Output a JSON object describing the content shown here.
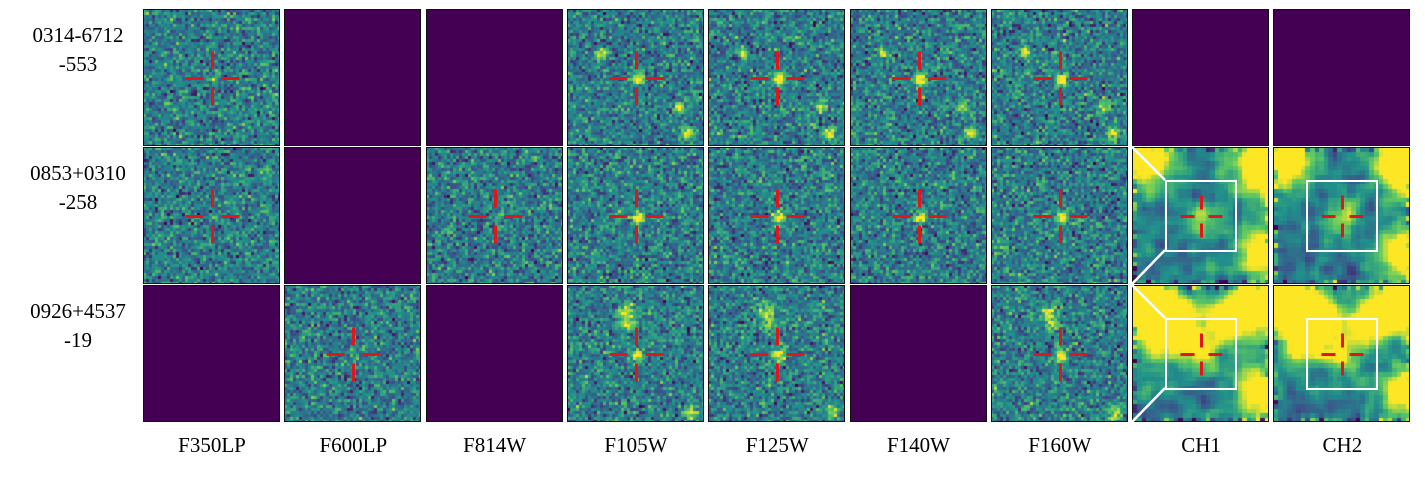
{
  "rows": [
    {
      "id_line1": "0314-6712",
      "id_line2": "-553"
    },
    {
      "id_line1": "0853+0310",
      "id_line2": "-258"
    },
    {
      "id_line1": "0926+4537",
      "id_line2": "-19"
    }
  ],
  "filters": [
    "F350LP",
    "F600LP",
    "F814W",
    "F105W",
    "F125W",
    "F140W",
    "F160W",
    "CH1",
    "CH2"
  ],
  "panels": [
    [
      "noise",
      "empty",
      "empty",
      "source",
      "source",
      "source",
      "source",
      "empty",
      "empty"
    ],
    [
      "noise",
      "empty",
      "noise",
      "source",
      "source",
      "source",
      "source",
      "irac",
      "irac"
    ],
    [
      "empty",
      "noise",
      "empty",
      "source",
      "source",
      "empty",
      "source",
      "irac",
      "irac"
    ]
  ],
  "colors": {
    "empty_panel": "#440154",
    "crosshair": "#e0161b",
    "zoom_box": "#ffffff",
    "colormap": "viridis"
  }
}
